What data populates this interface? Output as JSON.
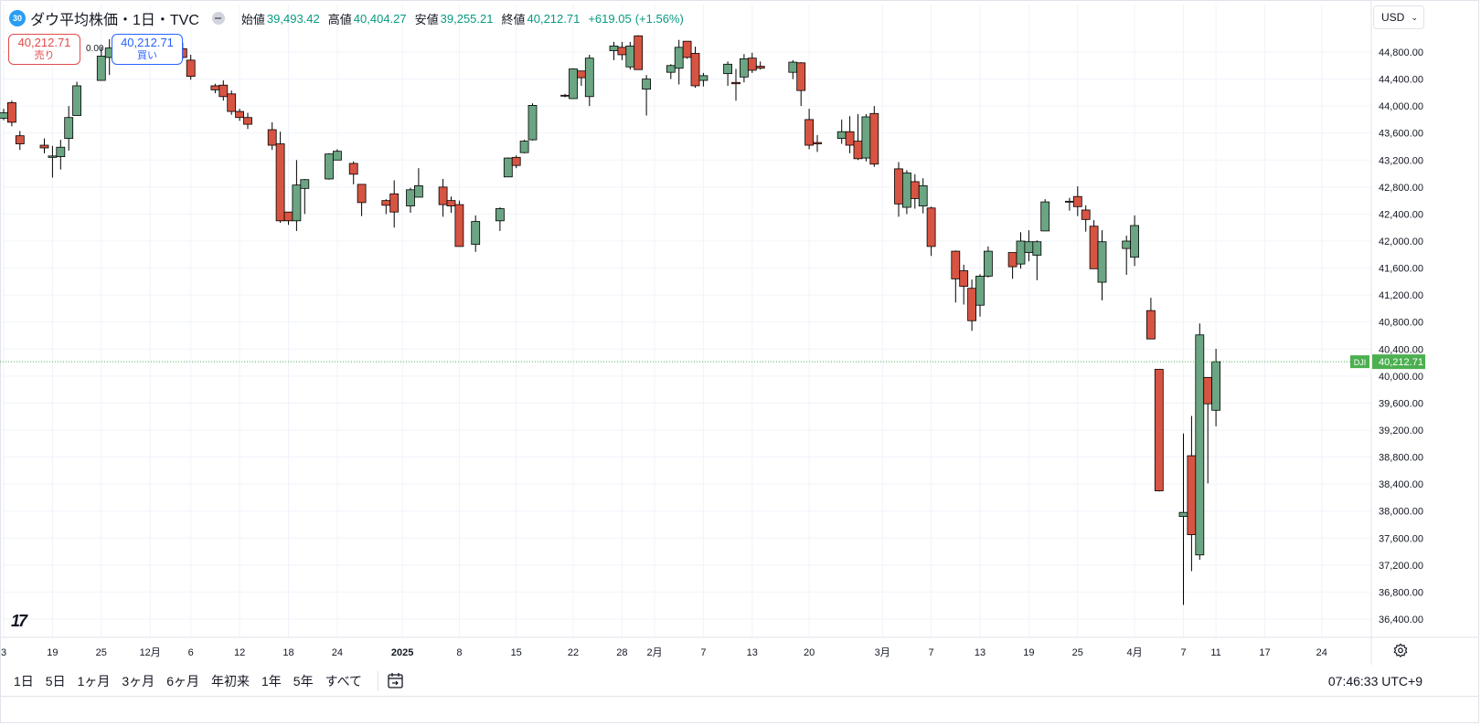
{
  "header": {
    "badge": "30",
    "symbol_title": "ダウ平均株価・1日・TVC",
    "open_label": "始値",
    "open_value": "39,493.42",
    "high_label": "高値",
    "high_value": "40,404.27",
    "low_label": "安値",
    "low_value": "39,255.21",
    "close_label": "終値",
    "close_value": "40,212.71",
    "change": "+619.05",
    "change_pct": "(+1.56%)"
  },
  "trade": {
    "sell_price": "40,212.71",
    "sell_label": "売り",
    "spread": "0.00",
    "buy_price": "40,212.71",
    "buy_label": "買い"
  },
  "currency": {
    "value": "USD"
  },
  "logo": "17",
  "bottom": {
    "ranges": [
      "1日",
      "5日",
      "1ヶ月",
      "3ヶ月",
      "6ヶ月",
      "年初来",
      "1年",
      "5年",
      "すべて"
    ],
    "clock": "07:46:33 UTC+9"
  },
  "colors": {
    "up": "#6ba583",
    "down": "#d75442",
    "up_label": "#4caf50",
    "grid": "#f0f3fa",
    "price_line": "#4caf50"
  },
  "icons": {
    "gear": "gear-icon",
    "calendar": "date-range-icon",
    "dropdown": "chevron-down-icon"
  },
  "chart_data": {
    "type": "candlestick",
    "symbol": "DJI",
    "interval": "1D",
    "ylim": [
      36200,
      45100
    ],
    "y_ticks": [
      36400,
      36800,
      37200,
      37600,
      38000,
      38400,
      38800,
      39200,
      39600,
      40000,
      40400,
      40800,
      41200,
      41600,
      42000,
      42400,
      42800,
      43200,
      43600,
      44000,
      44400,
      44800
    ],
    "y_tick_labels": [
      "36,400.00",
      "36,800.00",
      "37,200.00",
      "37,600.00",
      "38,000.00",
      "38,400.00",
      "38,800.00",
      "39,200.00",
      "39,600.00",
      "40,000.00",
      "40,400.00",
      "40,800.00",
      "41,200.00",
      "41,600.00",
      "42,000.00",
      "42,400.00",
      "42,800.00",
      "43,200.00",
      "43,600.00",
      "44,000.00",
      "44,400.00",
      "44,800.00"
    ],
    "x_labels": [
      {
        "date": "2024-11-13",
        "label": "3"
      },
      {
        "date": "2024-11-19",
        "label": "19"
      },
      {
        "date": "2024-11-25",
        "label": "25"
      },
      {
        "date": "2024-12-01",
        "label": "12月"
      },
      {
        "date": "2024-12-06",
        "label": "6"
      },
      {
        "date": "2024-12-12",
        "label": "12"
      },
      {
        "date": "2024-12-18",
        "label": "18"
      },
      {
        "date": "2024-12-24",
        "label": "24"
      },
      {
        "date": "2025-01-01",
        "label": "2025",
        "bold": true
      },
      {
        "date": "2025-01-08",
        "label": "8"
      },
      {
        "date": "2025-01-15",
        "label": "15"
      },
      {
        "date": "2025-01-22",
        "label": "22"
      },
      {
        "date": "2025-01-28",
        "label": "28"
      },
      {
        "date": "2025-02-01",
        "label": "2月"
      },
      {
        "date": "2025-02-07",
        "label": "7"
      },
      {
        "date": "2025-02-13",
        "label": "13"
      },
      {
        "date": "2025-02-20",
        "label": "20"
      },
      {
        "date": "2025-03-01",
        "label": "3月"
      },
      {
        "date": "2025-03-07",
        "label": "7"
      },
      {
        "date": "2025-03-13",
        "label": "13"
      },
      {
        "date": "2025-03-19",
        "label": "19"
      },
      {
        "date": "2025-03-25",
        "label": "25"
      },
      {
        "date": "2025-04-01",
        "label": "4月"
      },
      {
        "date": "2025-04-07",
        "label": "7"
      },
      {
        "date": "2025-04-11",
        "label": "11"
      },
      {
        "date": "2025-04-17",
        "label": "17"
      },
      {
        "date": "2025-04-24",
        "label": "24"
      }
    ],
    "last_price": 40212.71,
    "last_price_label": "40,212.71",
    "last_price_tag": "DJI",
    "candles": [
      {
        "date": "2024-11-13",
        "o": 43820,
        "h": 43960,
        "l": 43790,
        "c": 43900
      },
      {
        "date": "2024-11-14",
        "o": 44050,
        "h": 44080,
        "l": 43700,
        "c": 43760
      },
      {
        "date": "2024-11-15",
        "o": 43560,
        "h": 43630,
        "l": 43350,
        "c": 43440
      },
      {
        "date": "2024-11-18",
        "o": 43420,
        "h": 43520,
        "l": 43300,
        "c": 43380
      },
      {
        "date": "2024-11-19",
        "o": 43240,
        "h": 43410,
        "l": 42940,
        "c": 43260
      },
      {
        "date": "2024-11-20",
        "o": 43250,
        "h": 43500,
        "l": 43060,
        "c": 43390
      },
      {
        "date": "2024-11-21",
        "o": 43520,
        "h": 44000,
        "l": 43340,
        "c": 43830
      },
      {
        "date": "2024-11-22",
        "o": 43860,
        "h": 44360,
        "l": 43860,
        "c": 44300
      },
      {
        "date": "2024-11-25",
        "o": 44380,
        "h": 44880,
        "l": 44380,
        "c": 44740
      },
      {
        "date": "2024-11-26",
        "o": 44720,
        "h": 44990,
        "l": 44460,
        "c": 44860
      },
      {
        "date": "2024-11-27",
        "o": 44880,
        "h": 45070,
        "l": 44790,
        "c": 44960
      },
      {
        "date": "2024-11-29",
        "o": 44920,
        "h": 45050,
        "l": 44880,
        "c": 45020
      },
      {
        "date": "2024-12-02",
        "o": 45040,
        "h": 45050,
        "l": 44760,
        "c": 44800
      },
      {
        "date": "2024-12-03",
        "o": 44960,
        "h": 45010,
        "l": 44700,
        "c": 44730
      },
      {
        "date": "2024-12-04",
        "o": 45030,
        "h": 45060,
        "l": 44800,
        "c": 44820
      },
      {
        "date": "2024-12-05",
        "o": 44850,
        "h": 44940,
        "l": 44700,
        "c": 44720
      },
      {
        "date": "2024-12-06",
        "o": 44680,
        "h": 44760,
        "l": 44390,
        "c": 44440
      },
      {
        "date": "2024-12-09",
        "o": 44300,
        "h": 44330,
        "l": 44190,
        "c": 44240
      },
      {
        "date": "2024-12-10",
        "o": 44310,
        "h": 44380,
        "l": 44080,
        "c": 44140
      },
      {
        "date": "2024-12-11",
        "o": 44180,
        "h": 44230,
        "l": 43870,
        "c": 43920
      },
      {
        "date": "2024-12-12",
        "o": 43920,
        "h": 43960,
        "l": 43780,
        "c": 43830
      },
      {
        "date": "2024-12-13",
        "o": 43830,
        "h": 43900,
        "l": 43660,
        "c": 43730
      },
      {
        "date": "2024-12-16",
        "o": 43650,
        "h": 43760,
        "l": 43350,
        "c": 43420
      },
      {
        "date": "2024-12-17",
        "o": 43440,
        "h": 43620,
        "l": 42270,
        "c": 42300
      },
      {
        "date": "2024-12-18",
        "o": 42430,
        "h": 42430,
        "l": 42240,
        "c": 42300
      },
      {
        "date": "2024-12-19",
        "o": 42300,
        "h": 43200,
        "l": 42150,
        "c": 42830
      },
      {
        "date": "2024-12-20",
        "o": 42780,
        "h": 42920,
        "l": 42400,
        "c": 42910
      },
      {
        "date": "2024-12-23",
        "o": 42920,
        "h": 43300,
        "l": 42910,
        "c": 43290
      },
      {
        "date": "2024-12-24",
        "o": 43200,
        "h": 43360,
        "l": 43200,
        "c": 43330
      },
      {
        "date": "2024-12-26",
        "o": 43150,
        "h": 43180,
        "l": 42840,
        "c": 42990
      },
      {
        "date": "2024-12-27",
        "o": 42840,
        "h": 42840,
        "l": 42370,
        "c": 42570
      },
      {
        "date": "2024-12-30",
        "o": 42600,
        "h": 42620,
        "l": 42400,
        "c": 42530
      },
      {
        "date": "2024-12-31",
        "o": 42700,
        "h": 42900,
        "l": 42200,
        "c": 42430
      },
      {
        "date": "2025-01-02",
        "o": 42520,
        "h": 42790,
        "l": 42420,
        "c": 42760
      },
      {
        "date": "2025-01-03",
        "o": 42650,
        "h": 43080,
        "l": 42650,
        "c": 42820
      },
      {
        "date": "2025-01-06",
        "o": 42800,
        "h": 42920,
        "l": 42360,
        "c": 42540
      },
      {
        "date": "2025-01-07",
        "o": 42600,
        "h": 42660,
        "l": 42420,
        "c": 42520
      },
      {
        "date": "2025-01-08",
        "o": 42540,
        "h": 42600,
        "l": 41920,
        "c": 41920
      },
      {
        "date": "2025-01-10",
        "o": 41950,
        "h": 42380,
        "l": 41840,
        "c": 42290
      },
      {
        "date": "2025-01-13",
        "o": 42300,
        "h": 42500,
        "l": 42150,
        "c": 42480
      },
      {
        "date": "2025-01-14",
        "o": 42950,
        "h": 43240,
        "l": 42950,
        "c": 43230
      },
      {
        "date": "2025-01-15",
        "o": 43240,
        "h": 43270,
        "l": 43080,
        "c": 43120
      },
      {
        "date": "2025-01-16",
        "o": 43310,
        "h": 43500,
        "l": 43300,
        "c": 43480
      },
      {
        "date": "2025-01-17",
        "o": 43500,
        "h": 44040,
        "l": 43490,
        "c": 44010
      },
      {
        "date": "2025-01-21",
        "o": 44160,
        "h": 44180,
        "l": 44130,
        "c": 44150
      },
      {
        "date": "2025-01-22",
        "o": 44110,
        "h": 44560,
        "l": 44110,
        "c": 44550
      },
      {
        "date": "2025-01-23",
        "o": 44520,
        "h": 44520,
        "l": 44300,
        "c": 44420
      },
      {
        "date": "2025-01-24",
        "o": 44140,
        "h": 44760,
        "l": 44000,
        "c": 44710
      },
      {
        "date": "2025-01-27",
        "o": 44820,
        "h": 44950,
        "l": 44680,
        "c": 44890
      },
      {
        "date": "2025-01-28",
        "o": 44870,
        "h": 44950,
        "l": 44680,
        "c": 44760
      },
      {
        "date": "2025-01-29",
        "o": 44580,
        "h": 44950,
        "l": 44540,
        "c": 44890
      },
      {
        "date": "2025-01-30",
        "o": 45040,
        "h": 45050,
        "l": 44560,
        "c": 44540
      },
      {
        "date": "2025-01-31",
        "o": 44250,
        "h": 44460,
        "l": 43860,
        "c": 44400
      },
      {
        "date": "2025-02-03",
        "o": 44500,
        "h": 44620,
        "l": 44400,
        "c": 44600
      },
      {
        "date": "2025-02-04",
        "o": 44560,
        "h": 44980,
        "l": 44320,
        "c": 44870
      },
      {
        "date": "2025-02-05",
        "o": 44960,
        "h": 44960,
        "l": 44700,
        "c": 44720
      },
      {
        "date": "2025-02-06",
        "o": 44780,
        "h": 44880,
        "l": 44270,
        "c": 44300
      },
      {
        "date": "2025-02-07",
        "o": 44380,
        "h": 44490,
        "l": 44290,
        "c": 44450
      },
      {
        "date": "2025-02-10",
        "o": 44480,
        "h": 44660,
        "l": 44300,
        "c": 44620
      },
      {
        "date": "2025-02-11",
        "o": 44350,
        "h": 44550,
        "l": 44080,
        "c": 44330
      },
      {
        "date": "2025-02-12",
        "o": 44430,
        "h": 44770,
        "l": 44350,
        "c": 44700
      },
      {
        "date": "2025-02-13",
        "o": 44710,
        "h": 44790,
        "l": 44490,
        "c": 44530
      },
      {
        "date": "2025-02-14",
        "o": 44590,
        "h": 44660,
        "l": 44540,
        "c": 44560
      },
      {
        "date": "2025-02-18",
        "o": 44500,
        "h": 44680,
        "l": 44400,
        "c": 44650
      },
      {
        "date": "2025-02-19",
        "o": 44640,
        "h": 44650,
        "l": 44000,
        "c": 44230
      },
      {
        "date": "2025-02-20",
        "o": 43800,
        "h": 43960,
        "l": 43360,
        "c": 43420
      },
      {
        "date": "2025-02-21",
        "o": 43460,
        "h": 43570,
        "l": 43320,
        "c": 43440
      },
      {
        "date": "2025-02-24",
        "o": 43520,
        "h": 43800,
        "l": 43440,
        "c": 43620
      },
      {
        "date": "2025-02-25",
        "o": 43620,
        "h": 43850,
        "l": 43300,
        "c": 43420
      },
      {
        "date": "2025-02-26",
        "o": 43480,
        "h": 43880,
        "l": 43200,
        "c": 43220
      },
      {
        "date": "2025-02-27",
        "o": 43230,
        "h": 43880,
        "l": 43180,
        "c": 43840
      },
      {
        "date": "2025-02-28",
        "o": 43890,
        "h": 44000,
        "l": 43100,
        "c": 43140
      },
      {
        "date": "2025-03-03",
        "o": 43070,
        "h": 43170,
        "l": 42360,
        "c": 42550
      },
      {
        "date": "2025-03-04",
        "o": 42500,
        "h": 43050,
        "l": 42400,
        "c": 43010
      },
      {
        "date": "2025-03-05",
        "o": 42880,
        "h": 42990,
        "l": 42480,
        "c": 42630
      },
      {
        "date": "2025-03-06",
        "o": 42520,
        "h": 42930,
        "l": 42410,
        "c": 42820
      },
      {
        "date": "2025-03-07",
        "o": 42490,
        "h": 42510,
        "l": 41780,
        "c": 41920
      },
      {
        "date": "2025-03-10",
        "o": 41850,
        "h": 41860,
        "l": 41090,
        "c": 41440
      },
      {
        "date": "2025-03-11",
        "o": 41560,
        "h": 41650,
        "l": 41060,
        "c": 41330
      },
      {
        "date": "2025-03-12",
        "o": 41300,
        "h": 41430,
        "l": 40670,
        "c": 40820
      },
      {
        "date": "2025-03-13",
        "o": 41050,
        "h": 41510,
        "l": 40880,
        "c": 41480
      },
      {
        "date": "2025-03-14",
        "o": 41480,
        "h": 41920,
        "l": 41460,
        "c": 41850
      },
      {
        "date": "2025-03-17",
        "o": 41830,
        "h": 41830,
        "l": 41440,
        "c": 41620
      },
      {
        "date": "2025-03-18",
        "o": 41660,
        "h": 42130,
        "l": 41590,
        "c": 42000
      },
      {
        "date": "2025-03-19",
        "o": 41830,
        "h": 42160,
        "l": 41700,
        "c": 41990
      },
      {
        "date": "2025-03-20",
        "o": 41790,
        "h": 42010,
        "l": 41420,
        "c": 41990
      },
      {
        "date": "2025-03-21",
        "o": 42150,
        "h": 42620,
        "l": 42150,
        "c": 42580
      },
      {
        "date": "2025-03-24",
        "o": 42580,
        "h": 42640,
        "l": 42450,
        "c": 42590
      },
      {
        "date": "2025-03-25",
        "o": 42660,
        "h": 42810,
        "l": 42370,
        "c": 42510
      },
      {
        "date": "2025-03-26",
        "o": 42460,
        "h": 42530,
        "l": 42140,
        "c": 42320
      },
      {
        "date": "2025-03-27",
        "o": 42220,
        "h": 42310,
        "l": 41600,
        "c": 41590
      },
      {
        "date": "2025-03-28",
        "o": 41390,
        "h": 42160,
        "l": 41120,
        "c": 41990
      },
      {
        "date": "2025-03-31",
        "o": 41890,
        "h": 42080,
        "l": 41500,
        "c": 42000
      },
      {
        "date": "2025-04-01",
        "o": 41760,
        "h": 42380,
        "l": 41630,
        "c": 42230
      },
      {
        "date": "2025-04-03",
        "o": 40970,
        "h": 41160,
        "l": 40550,
        "c": 40550
      },
      {
        "date": "2025-04-04",
        "o": 40100,
        "h": 40100,
        "l": 38290,
        "c": 38300
      },
      {
        "date": "2025-04-07",
        "o": 37920,
        "h": 39150,
        "l": 36610,
        "c": 37980
      },
      {
        "date": "2025-04-08",
        "o": 38820,
        "h": 39410,
        "l": 37110,
        "c": 37650
      },
      {
        "date": "2025-04-09",
        "o": 37350,
        "h": 40780,
        "l": 37280,
        "c": 40610
      },
      {
        "date": "2025-04-10",
        "o": 39980,
        "h": 39980,
        "l": 38410,
        "c": 39590
      },
      {
        "date": "2025-04-11",
        "o": 39493.42,
        "h": 40404.27,
        "l": 39255.21,
        "c": 40212.71
      }
    ]
  }
}
